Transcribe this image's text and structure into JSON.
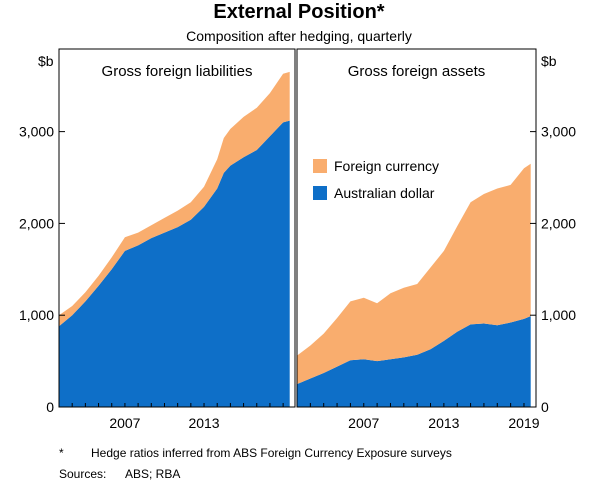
{
  "title": "External Position*",
  "subtitle": "Composition after hedging, quarterly",
  "footnote": {
    "mark": "*",
    "text": "Hedge ratios inferred from ABS Foreign Currency Exposure surveys"
  },
  "sources": {
    "label": "Sources:",
    "text": "ABS; RBA"
  },
  "colors": {
    "foreign_currency": "#F9AD6E",
    "australian_dollar": "#0E6FC8"
  },
  "chart_data": {
    "type": "area",
    "stacked": true,
    "y_unit": "$b",
    "ylim": [
      0,
      3900
    ],
    "yticks": [
      0,
      1000,
      2000,
      3000
    ],
    "ytick_labels": [
      "0",
      "1,000",
      "2,000",
      "3,000"
    ],
    "grid": false,
    "legend": {
      "position": "right panel, middle",
      "entries": [
        "Foreign currency",
        "Australian dollar"
      ]
    },
    "panels": [
      {
        "title": "Gross foreign liabilities",
        "xticks": [
          "2007",
          "2013"
        ],
        "x": [
          2002.0,
          2003.0,
          2004.0,
          2005.0,
          2006.0,
          2007.0,
          2008.0,
          2009.0,
          2010.0,
          2011.0,
          2012.0,
          2013.0,
          2014.0,
          2014.5,
          2015.0,
          2016.0,
          2017.0,
          2018.0,
          2019.0,
          2019.5
        ],
        "series": [
          {
            "name": "Australian dollar",
            "color": "#0E6FC8",
            "values": [
              880,
              1000,
              1150,
              1320,
              1500,
              1700,
              1760,
              1840,
              1900,
              1960,
              2040,
              2180,
              2380,
              2550,
              2630,
              2720,
              2800,
              2950,
              3100,
              3120
            ]
          },
          {
            "name": "Foreign currency",
            "color": "#F9AD6E",
            "values": [
              120,
              100,
              100,
              110,
              130,
              150,
              140,
              140,
              160,
              180,
              190,
              220,
              320,
              380,
              400,
              440,
              460,
              470,
              530,
              530
            ]
          }
        ]
      },
      {
        "title": "Gross foreign assets",
        "xticks": [
          "2007",
          "2013",
          "2019"
        ],
        "x": [
          2002.0,
          2003.0,
          2004.0,
          2005.0,
          2006.0,
          2007.0,
          2008.0,
          2009.0,
          2010.0,
          2011.0,
          2012.0,
          2013.0,
          2014.0,
          2015.0,
          2016.0,
          2017.0,
          2018.0,
          2019.0,
          2019.5
        ],
        "series": [
          {
            "name": "Australian dollar",
            "color": "#0E6FC8",
            "values": [
              250,
              310,
              370,
              440,
              510,
              520,
              500,
              520,
              540,
              570,
              630,
              720,
              820,
              900,
              910,
              890,
              920,
              960,
              990
            ]
          },
          {
            "name": "Foreign currency",
            "color": "#F9AD6E",
            "values": [
              310,
              360,
              430,
              530,
              640,
              670,
              630,
              720,
              760,
              770,
              890,
              980,
              1150,
              1330,
              1410,
              1490,
              1500,
              1640,
              1660
            ]
          }
        ]
      }
    ]
  }
}
